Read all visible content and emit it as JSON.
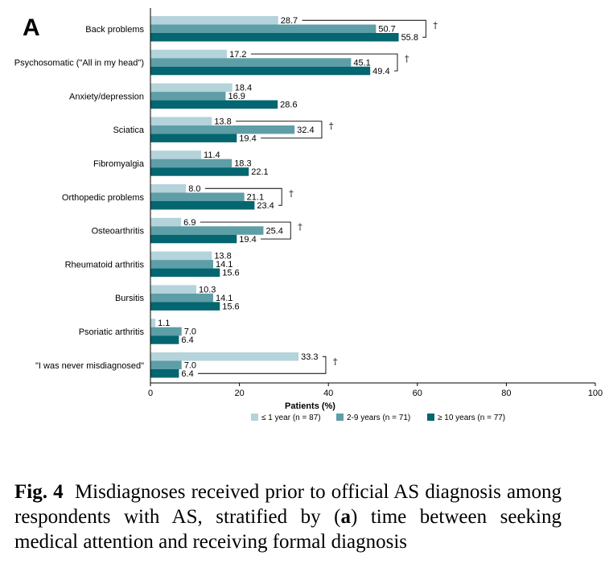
{
  "panel_letter": "A",
  "colors": {
    "le1": "#b4d3da",
    "y2to9": "#5e9ea7",
    "ge10": "#036670"
  },
  "chart_data": {
    "type": "bar",
    "orientation": "horizontal",
    "title": "",
    "xlabel": "Patients (%)",
    "ylabel": "",
    "xlim": [
      0,
      100
    ],
    "xticks": [
      0,
      20,
      40,
      60,
      80,
      100
    ],
    "grid": false,
    "legend_position": "bottom",
    "categories": [
      "Back problems",
      "Psychosomatic (\"All in my head\")",
      "Anxiety/depression",
      "Sciatica",
      "Fibromyalgia",
      "Orthopedic problems",
      "Osteoarthritis",
      "Rheumatoid arthritis",
      "Bursitis",
      "Psoriatic arthritis",
      "\"I was never misdiagnosed\""
    ],
    "series": [
      {
        "name": "≤ 1 year (n = 87)",
        "key": "le1",
        "values": [
          28.7,
          17.2,
          18.4,
          13.8,
          11.4,
          8.0,
          6.9,
          13.8,
          10.3,
          1.1,
          33.3
        ],
        "labels": [
          "28.7",
          "17.2",
          "18.4",
          "13.8",
          "11.4",
          "8.0",
          "6.9",
          "13.8",
          "10.3",
          "1.1",
          "33.3"
        ]
      },
      {
        "name": "2-9 years (n = 71)",
        "key": "y2to9",
        "values": [
          50.7,
          45.1,
          16.9,
          32.4,
          18.3,
          21.1,
          25.4,
          14.1,
          14.1,
          7.0,
          7.0
        ],
        "labels": [
          "50.7",
          "45.1",
          "16.9",
          "32.4",
          "18.3",
          "21.1",
          "25.4",
          "14.1",
          "14.1",
          "7.0",
          "7.0"
        ]
      },
      {
        "name": "≥ 10 years (n = 77)",
        "key": "ge10",
        "values": [
          55.8,
          49.4,
          28.6,
          19.4,
          22.1,
          23.4,
          19.4,
          15.6,
          15.6,
          6.4,
          6.4
        ],
        "labels": [
          "55.8",
          "49.4",
          "28.6",
          "19.4",
          "22.1",
          "23.4",
          "19.4",
          "15.6",
          "15.6",
          "6.4",
          "6.4"
        ]
      }
    ],
    "significance": [
      {
        "category_index": 0,
        "marker": "†"
      },
      {
        "category_index": 1,
        "marker": "†"
      },
      {
        "category_index": 3,
        "marker": "†"
      },
      {
        "category_index": 5,
        "marker": "†"
      },
      {
        "category_index": 6,
        "marker": "†"
      },
      {
        "category_index": 10,
        "marker": "†"
      }
    ]
  },
  "caption": {
    "fig_label": "Fig. 4",
    "text_before": "Misdiagnoses received prior to official AS diagnosis among respondents with AS, stratified by (",
    "panel_ref": "a",
    "text_after": ") time between seeking medical attention and receiving formal diagnosis"
  }
}
